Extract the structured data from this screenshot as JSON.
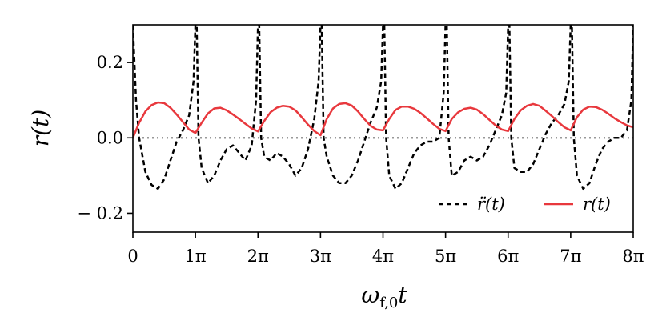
{
  "chart_data": {
    "type": "line",
    "xlabel": "ω_f,0 t",
    "ylabel": "r(t)",
    "xlim": [
      0,
      8
    ],
    "ylim": [
      -0.25,
      0.3
    ],
    "x_unit": "π",
    "xticks": [
      {
        "value": 0,
        "label": "0"
      },
      {
        "value": 1,
        "label": "1π"
      },
      {
        "value": 2,
        "label": "2π"
      },
      {
        "value": 3,
        "label": "3π"
      },
      {
        "value": 4,
        "label": "4π"
      },
      {
        "value": 5,
        "label": "5π"
      },
      {
        "value": 6,
        "label": "6π"
      },
      {
        "value": 7,
        "label": "7π"
      },
      {
        "value": 8,
        "label": "8π"
      }
    ],
    "yticks": [
      {
        "value": 0.2,
        "label": "0.2"
      },
      {
        "value": 0.0,
        "label": "0.0"
      },
      {
        "value": -0.2,
        "label": "− 0.2"
      }
    ],
    "reference_line": {
      "y": 0.0,
      "style": "dotted",
      "color": "#999999"
    },
    "legend_position": "lower-right",
    "series": [
      {
        "name": "r̈(t)",
        "color": "#000000",
        "style": "dashed",
        "x": [
          0,
          0.05,
          0.1,
          0.2,
          0.3,
          0.4,
          0.5,
          0.6,
          0.7,
          0.8,
          0.9,
          0.97,
          1.0,
          1.02,
          1.05,
          1.1,
          1.2,
          1.3,
          1.4,
          1.5,
          1.6,
          1.7,
          1.8,
          1.9,
          1.97,
          2.0,
          2.02,
          2.05,
          2.1,
          2.2,
          2.3,
          2.4,
          2.5,
          2.6,
          2.7,
          2.8,
          2.9,
          2.97,
          3.0,
          3.02,
          3.05,
          3.1,
          3.2,
          3.3,
          3.4,
          3.5,
          3.6,
          3.7,
          3.8,
          3.9,
          3.97,
          4.0,
          4.02,
          4.05,
          4.1,
          4.2,
          4.3,
          4.4,
          4.5,
          4.6,
          4.7,
          4.8,
          4.9,
          4.97,
          5.0,
          5.02,
          5.05,
          5.1,
          5.2,
          5.3,
          5.4,
          5.5,
          5.6,
          5.7,
          5.8,
          5.9,
          5.97,
          6.0,
          6.02,
          6.05,
          6.1,
          6.2,
          6.3,
          6.4,
          6.5,
          6.6,
          6.7,
          6.8,
          6.9,
          6.97,
          7.0,
          7.02,
          7.05,
          7.1,
          7.2,
          7.3,
          7.4,
          7.5,
          7.6,
          7.7,
          7.8,
          7.9,
          7.97,
          8.0
        ],
        "y": [
          0.3,
          0.1,
          0.0,
          -0.09,
          -0.125,
          -0.135,
          -0.11,
          -0.06,
          -0.01,
          0.02,
          0.06,
          0.15,
          0.3,
          0.3,
          0.0,
          -0.08,
          -0.12,
          -0.1,
          -0.06,
          -0.03,
          -0.02,
          -0.04,
          -0.06,
          -0.02,
          0.1,
          0.3,
          0.3,
          0.0,
          -0.05,
          -0.06,
          -0.04,
          -0.05,
          -0.07,
          -0.1,
          -0.08,
          -0.03,
          0.05,
          0.15,
          0.3,
          0.3,
          0.0,
          -0.05,
          -0.1,
          -0.12,
          -0.12,
          -0.1,
          -0.06,
          -0.01,
          0.04,
          0.08,
          0.15,
          0.3,
          0.3,
          0.0,
          -0.1,
          -0.135,
          -0.12,
          -0.08,
          -0.04,
          -0.02,
          -0.01,
          -0.01,
          0.0,
          0.12,
          0.3,
          0.3,
          0.0,
          -0.1,
          -0.09,
          -0.06,
          -0.05,
          -0.06,
          -0.05,
          -0.02,
          0.02,
          0.06,
          0.12,
          0.3,
          0.3,
          0.0,
          -0.08,
          -0.09,
          -0.09,
          -0.07,
          -0.03,
          0.01,
          0.04,
          0.06,
          0.09,
          0.15,
          0.3,
          0.3,
          0.0,
          -0.1,
          -0.135,
          -0.12,
          -0.07,
          -0.03,
          -0.01,
          0.0,
          0.0,
          0.02,
          0.1,
          0.3
        ]
      },
      {
        "name": "r(t)",
        "color": "#e8383d",
        "style": "solid",
        "x": [
          0,
          0.1,
          0.2,
          0.3,
          0.4,
          0.5,
          0.6,
          0.7,
          0.8,
          0.9,
          1.0,
          1.1,
          1.2,
          1.3,
          1.4,
          1.5,
          1.6,
          1.7,
          1.8,
          1.9,
          2.0,
          2.1,
          2.2,
          2.3,
          2.4,
          2.5,
          2.6,
          2.7,
          2.8,
          2.9,
          3.0,
          3.1,
          3.2,
          3.3,
          3.4,
          3.5,
          3.6,
          3.7,
          3.8,
          3.9,
          4.0,
          4.1,
          4.2,
          4.3,
          4.4,
          4.5,
          4.6,
          4.7,
          4.8,
          4.9,
          5.0,
          5.1,
          5.2,
          5.3,
          5.4,
          5.5,
          5.6,
          5.7,
          5.8,
          5.9,
          6.0,
          6.1,
          6.2,
          6.3,
          6.4,
          6.5,
          6.6,
          6.7,
          6.8,
          6.9,
          7.0,
          7.1,
          7.2,
          7.3,
          7.4,
          7.5,
          7.6,
          7.7,
          7.8,
          7.9,
          8.0
        ],
        "y": [
          0.0,
          0.04,
          0.07,
          0.087,
          0.094,
          0.092,
          0.08,
          0.062,
          0.042,
          0.022,
          0.013,
          0.04,
          0.065,
          0.078,
          0.08,
          0.073,
          0.062,
          0.05,
          0.037,
          0.025,
          0.017,
          0.045,
          0.068,
          0.08,
          0.085,
          0.083,
          0.073,
          0.055,
          0.035,
          0.018,
          0.007,
          0.05,
          0.078,
          0.09,
          0.092,
          0.086,
          0.07,
          0.05,
          0.032,
          0.022,
          0.02,
          0.05,
          0.074,
          0.083,
          0.083,
          0.077,
          0.066,
          0.052,
          0.037,
          0.024,
          0.018,
          0.05,
          0.068,
          0.077,
          0.08,
          0.075,
          0.063,
          0.048,
          0.033,
          0.022,
          0.018,
          0.05,
          0.073,
          0.085,
          0.09,
          0.085,
          0.072,
          0.058,
          0.042,
          0.028,
          0.02,
          0.055,
          0.075,
          0.083,
          0.082,
          0.075,
          0.064,
          0.052,
          0.042,
          0.033,
          0.028
        ]
      }
    ]
  }
}
